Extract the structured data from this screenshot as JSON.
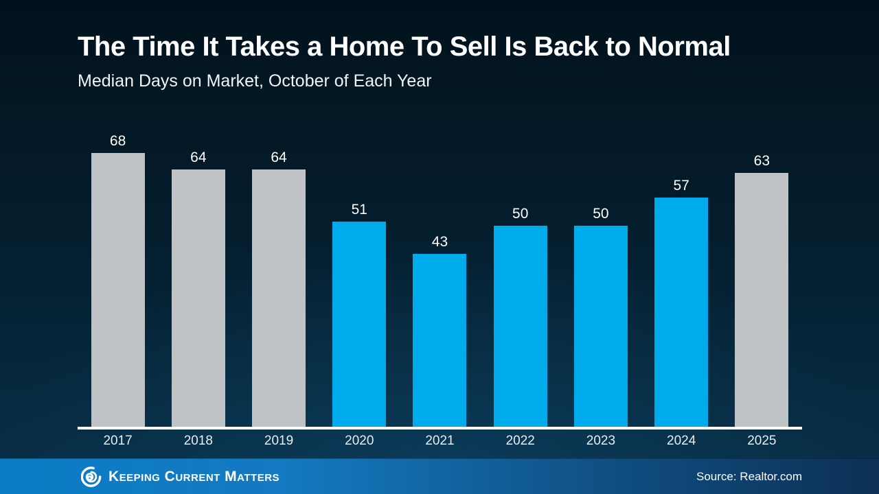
{
  "chart_data": {
    "type": "bar",
    "title": "The Time It Takes a Home To Sell Is Back to Normal",
    "subtitle": "Median Days on Market, October of Each Year",
    "categories": [
      "2017",
      "2018",
      "2019",
      "2020",
      "2021",
      "2022",
      "2023",
      "2024",
      "2025"
    ],
    "values": [
      68,
      64,
      64,
      51,
      43,
      50,
      50,
      57,
      63
    ],
    "bar_colors": [
      "gray",
      "gray",
      "gray",
      "blue",
      "blue",
      "blue",
      "blue",
      "blue",
      "gray"
    ],
    "xlabel": "",
    "ylabel": "",
    "ylim": [
      0,
      68
    ],
    "grid": false,
    "legend": false,
    "data_labels": true
  },
  "colors": {
    "gray": "#bfc3c5",
    "blue": "#00abec",
    "axis": "#ffffff",
    "background_top": "#02121c",
    "background_bottom": "#083049",
    "footer_left": "#0a7dc6",
    "footer_right": "#0d3055"
  },
  "footer": {
    "brand": "Keeping Current Matters",
    "source": "Source: Realtor.com",
    "logo": "kcm-spiral-logo"
  }
}
